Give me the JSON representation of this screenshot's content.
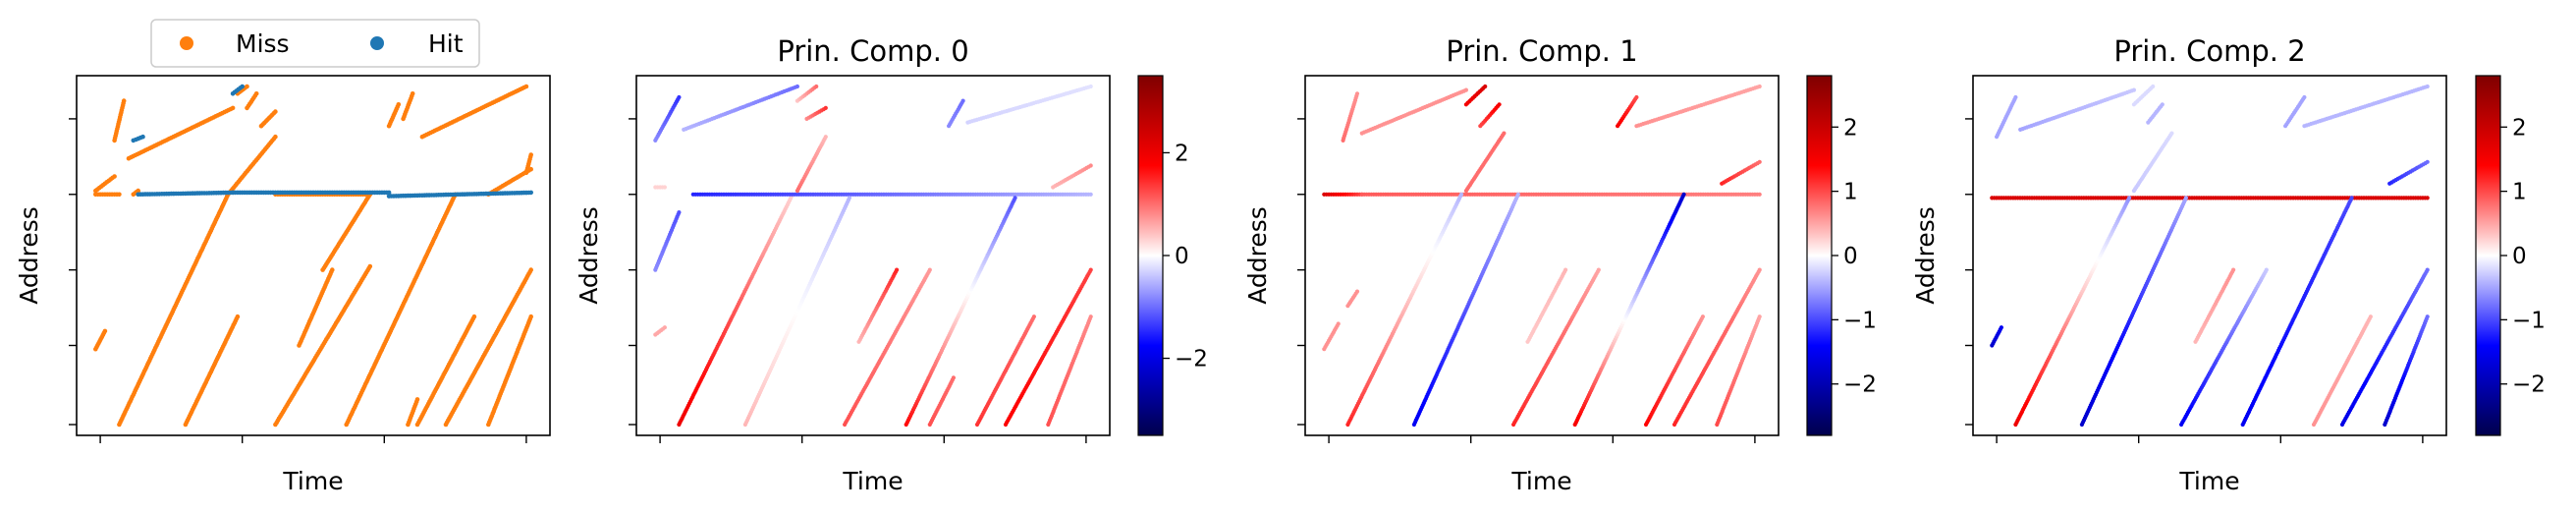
{
  "chart_data": [
    {
      "type": "scatter",
      "title": "",
      "xlabel": "Time",
      "ylabel": "Address",
      "legend": {
        "placement": "top-center",
        "entries": [
          {
            "label": "Miss",
            "color": "#ff7f0e"
          },
          {
            "label": "Hit",
            "color": "#1f77b4"
          }
        ]
      },
      "xlim": [
        0,
        100
      ],
      "ylim": [
        0,
        100
      ],
      "x_ticks": [
        5,
        35,
        65,
        95
      ],
      "y_ticks": [
        3,
        25,
        46,
        67,
        88
      ],
      "series": [
        {
          "name": "Miss",
          "color": "#ff7f0e",
          "values": [
            [
              4,
              68,
              8,
              72
            ],
            [
              8,
              82,
              10,
              93
            ],
            [
              11,
              77,
              33,
              91
            ],
            [
              34,
              95,
              36,
              97
            ],
            [
              36,
              91,
              38,
              95
            ],
            [
              39,
              86,
              42,
              90
            ],
            [
              32,
              67,
              42,
              83
            ],
            [
              4,
              24,
              6,
              29
            ],
            [
              12,
              67,
              13,
              68
            ],
            [
              9,
              3,
              32,
              67
            ],
            [
              23,
              3,
              34,
              33
            ],
            [
              42,
              3,
              62,
              47
            ],
            [
              47,
              25,
              54,
              46
            ],
            [
              52,
              46,
              62,
              67
            ],
            [
              42,
              67,
              62,
              67
            ],
            [
              4,
              67,
              9,
              67
            ],
            [
              57,
              3,
              80,
              67
            ],
            [
              72,
              3,
              84,
              33
            ],
            [
              78,
              3,
              96,
              46
            ],
            [
              87,
              3,
              96,
              33
            ],
            [
              66,
              86,
              68,
              92
            ],
            [
              69,
              88,
              71,
              95
            ],
            [
              73,
              83,
              95,
              97
            ],
            [
              95,
              73,
              96,
              78
            ],
            [
              87,
              67,
              96,
              74
            ],
            [
              70,
              3,
              72,
              10
            ]
          ]
        },
        {
          "name": "Hit",
          "color": "#1f77b4",
          "values": [
            [
              13,
              67,
              33,
              67.5
            ],
            [
              33,
              67.5,
              66,
              67.5
            ],
            [
              66,
              66.5,
              96,
              67.5
            ],
            [
              12,
              82,
              14,
              83
            ],
            [
              33,
              95,
              35,
              97
            ]
          ]
        }
      ]
    },
    {
      "type": "scatter",
      "title": "Prin. Comp. 0",
      "xlabel": "Time",
      "ylabel": "Address",
      "xlim": [
        0,
        100
      ],
      "ylim": [
        0,
        100
      ],
      "x_ticks": [
        5,
        35,
        65,
        95
      ],
      "y_ticks": [
        3,
        25,
        46,
        67,
        88
      ],
      "colorbar": {
        "range": [
          -3.5,
          3.5
        ],
        "ticks": [
          -2,
          0,
          2
        ],
        "cmap": "seismic"
      },
      "series": [
        {
          "name": "",
          "values": [
            [
              4,
              82,
              9,
              94,
              -0.8,
              -1.4
            ],
            [
              10,
              85,
              34,
              97,
              -0.5,
              -1.0
            ],
            [
              34,
              93,
              38,
              97,
              0.4,
              1.0
            ],
            [
              36,
              88,
              40,
              91,
              0.8,
              1.4
            ],
            [
              4,
              69,
              6,
              69,
              0.3,
              0.3
            ],
            [
              4,
              46,
              9,
              62,
              -0.8,
              -1.2
            ],
            [
              4,
              28,
              6,
              30,
              0.6,
              0.6
            ],
            [
              9,
              3,
              33,
              67,
              2.0,
              0.3
            ],
            [
              12,
              67,
              96,
              67,
              -1.5,
              -0.5
            ],
            [
              23,
              3,
              45,
              66,
              0.5,
              -0.5
            ],
            [
              44,
              3,
              62,
              46,
              1.2,
              0.7
            ],
            [
              47,
              26,
              55,
              46,
              0.5,
              1.5
            ],
            [
              57,
              3,
              80,
              66,
              1.7,
              -1.2
            ],
            [
              62,
              3,
              67,
              16,
              1.2,
              1.0
            ],
            [
              72,
              3,
              84,
              33,
              1.4,
              1.0
            ],
            [
              78,
              3,
              96,
              46,
              1.8,
              1.3
            ],
            [
              87,
              3,
              96,
              33,
              1.2,
              0.8
            ],
            [
              66,
              86,
              69,
              93,
              -0.8,
              -1.0
            ],
            [
              70,
              87,
              96,
              97,
              -0.3,
              -0.2
            ],
            [
              88,
              69,
              96,
              75,
              0.5,
              0.8
            ],
            [
              34,
              68,
              40,
              83,
              1.0,
              0.5
            ]
          ]
        }
      ]
    },
    {
      "type": "scatter",
      "title": "Prin. Comp. 1",
      "xlabel": "Time",
      "ylabel": "Address",
      "xlim": [
        0,
        100
      ],
      "ylim": [
        0,
        100
      ],
      "x_ticks": [
        5,
        35,
        65,
        95
      ],
      "y_ticks": [
        3,
        25,
        46,
        67,
        88
      ],
      "colorbar": {
        "range": [
          -2.8,
          2.8
        ],
        "ticks": [
          -2,
          -1,
          0,
          1,
          2
        ],
        "cmap": "seismic"
      },
      "series": [
        {
          "name": "",
          "values": [
            [
              8,
              82,
              11,
              95,
              0.8,
              0.6
            ],
            [
              12,
              84,
              34,
              96,
              0.6,
              0.6
            ],
            [
              34,
              92,
              38,
              97,
              1.5,
              1.8
            ],
            [
              37,
              86,
              41,
              92,
              1.0,
              1.5
            ],
            [
              4,
              67,
              12,
              67,
              1.8,
              1.0
            ],
            [
              12,
              67,
              96,
              67,
              0.9,
              0.7
            ],
            [
              4,
              24,
              7,
              31,
              0.6,
              0.6
            ],
            [
              9,
              3,
              33,
              67,
              1.2,
              -0.4
            ],
            [
              23,
              3,
              45,
              67,
              -1.5,
              -0.4
            ],
            [
              44,
              3,
              62,
              46,
              1.2,
              0.5
            ],
            [
              47,
              26,
              55,
              46,
              0.3,
              0.4
            ],
            [
              57,
              3,
              80,
              67,
              1.5,
              -1.8
            ],
            [
              72,
              3,
              84,
              33,
              1.4,
              0.6
            ],
            [
              78,
              3,
              96,
              46,
              1.2,
              0.6
            ],
            [
              87,
              3,
              96,
              33,
              1.0,
              0.5
            ],
            [
              66,
              86,
              70,
              94,
              1.5,
              1.0
            ],
            [
              70,
              86,
              96,
              97,
              0.6,
              0.5
            ],
            [
              88,
              70,
              96,
              76,
              1.2,
              0.8
            ],
            [
              34,
              68,
              42,
              84,
              0.8,
              0.8
            ],
            [
              9,
              36,
              11,
              40,
              0.6,
              0.6
            ]
          ]
        }
      ]
    },
    {
      "type": "scatter",
      "title": "Prin. Comp. 2",
      "xlabel": "Time",
      "ylabel": "Address",
      "xlim": [
        0,
        100
      ],
      "ylim": [
        0,
        100
      ],
      "x_ticks": [
        5,
        35,
        65,
        95
      ],
      "y_ticks": [
        3,
        25,
        46,
        67,
        88
      ],
      "colorbar": {
        "range": [
          -2.8,
          2.8
        ],
        "ticks": [
          -2,
          -1,
          0,
          1,
          2
        ],
        "cmap": "seismic"
      },
      "series": [
        {
          "name": "",
          "values": [
            [
              5,
              83,
              9,
              94,
              -0.5,
              -0.5
            ],
            [
              10,
              85,
              34,
              96,
              -0.5,
              -0.3
            ],
            [
              34,
              92,
              38,
              97,
              -0.2,
              -0.2
            ],
            [
              37,
              87,
              40,
              92,
              -0.4,
              -0.4
            ],
            [
              4,
              66,
              96,
              66,
              1.8,
              1.8
            ],
            [
              4,
              25,
              6,
              30,
              -1.8,
              -1.5
            ],
            [
              9,
              3,
              33,
              66,
              1.6,
              -0.6
            ],
            [
              23,
              3,
              45,
              66,
              -1.8,
              -0.5
            ],
            [
              44,
              3,
              62,
              46,
              -1.5,
              -0.3
            ],
            [
              47,
              26,
              55,
              46,
              0.4,
              0.6
            ],
            [
              57,
              3,
              80,
              66,
              -1.5,
              -1.0
            ],
            [
              72,
              3,
              84,
              33,
              0.6,
              0.4
            ],
            [
              78,
              3,
              96,
              46,
              -1.6,
              -0.8
            ],
            [
              87,
              3,
              96,
              33,
              -1.8,
              -0.8
            ],
            [
              66,
              86,
              70,
              94,
              -0.5,
              -0.5
            ],
            [
              70,
              86,
              96,
              97,
              -0.4,
              -0.4
            ],
            [
              88,
              70,
              96,
              76,
              -1.2,
              -0.8
            ],
            [
              34,
              68,
              42,
              84,
              -0.3,
              -0.2
            ]
          ]
        }
      ]
    }
  ]
}
